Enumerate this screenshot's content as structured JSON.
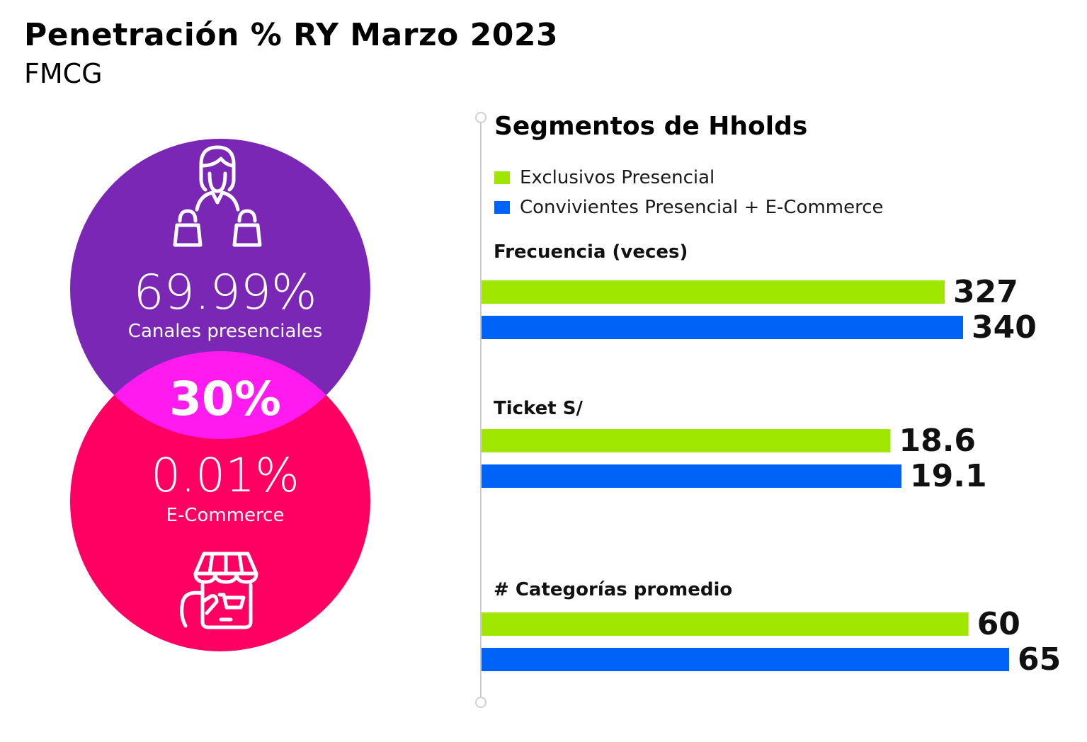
{
  "header": {
    "title": "Penetración % RY Marzo 2023",
    "subtitle": "FMCG"
  },
  "venn": {
    "top": {
      "value": "69.99%",
      "label": "Canales presenciales",
      "color": "#7B27B5",
      "icon": "shopper-with-bags-icon"
    },
    "overlap": {
      "value": "30%",
      "color": "#FF1AF0"
    },
    "bottom": {
      "value": "0.01%",
      "label": "E-Commerce",
      "color": "#FF0062",
      "icon": "mobile-store-icon"
    }
  },
  "segments": {
    "title": "Segmentos de Hholds",
    "legend": [
      {
        "label": "Exclusivos Presencial",
        "color": "#9FE600"
      },
      {
        "label": "Convivientes Presencial + E-Commerce",
        "color": "#0063F7"
      }
    ]
  },
  "chart_data": {
    "type": "bar",
    "orientation": "horizontal",
    "title": "Segmentos de Hholds",
    "series": [
      {
        "name": "Exclusivos Presencial",
        "color": "#9FE600"
      },
      {
        "name": "Convivientes Presencial + E-Commerce",
        "color": "#0063F7"
      }
    ],
    "groups": [
      {
        "label": "Frecuencia (veces)",
        "values": [
          327,
          340
        ],
        "labels": [
          "327",
          "340"
        ]
      },
      {
        "label": "Ticket S/",
        "values": [
          18.6,
          19.1
        ],
        "labels": [
          "18.6",
          "19.1"
        ]
      },
      {
        "label": "# Categorías promedio",
        "values": [
          60,
          65
        ],
        "labels": [
          "60",
          "65"
        ]
      }
    ],
    "grid": false,
    "legend_position": "top-left"
  }
}
